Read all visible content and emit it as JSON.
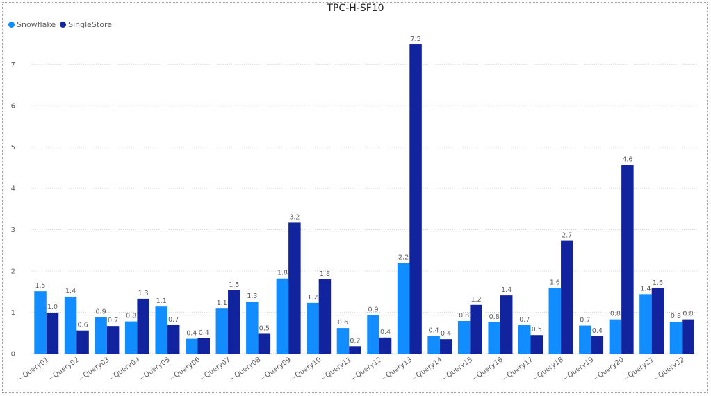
{
  "chart_data": {
    "type": "bar",
    "title": "TPC-H-SF10",
    "xlabel": "",
    "ylabel": "",
    "ylim": [
      0,
      7.8
    ],
    "yticks": [
      0,
      1,
      2,
      3,
      4,
      5,
      6,
      7
    ],
    "grid": true,
    "legend_position": "top-left",
    "categories": [
      "--Query01",
      "--Query02",
      "--Query03",
      "--Query04",
      "--Query05",
      "--Query06",
      "--Query07",
      "--Query08",
      "--Query09",
      "--Query10",
      "--Query11",
      "--Query12",
      "--Query13",
      "--Query14",
      "--Query15",
      "--Query16",
      "--Query17",
      "--Query18",
      "--Query19",
      "--Query20",
      "--Query21",
      "--Query22"
    ],
    "series": [
      {
        "name": "Snowflake",
        "color": "#118dff",
        "values": [
          1.51,
          1.38,
          0.88,
          0.78,
          1.14,
          0.36,
          1.09,
          1.26,
          1.82,
          1.23,
          0.62,
          0.93,
          2.19,
          0.43,
          0.79,
          0.76,
          0.69,
          1.59,
          0.68,
          0.83,
          1.44,
          0.77
        ],
        "labels": [
          "1.5",
          "1.4",
          "0.9",
          "0.8",
          "1.1",
          "0.4",
          "1.1",
          "1.3",
          "1.8",
          "1.2",
          "0.6",
          "0.9",
          "2.2",
          "0.4",
          "0.8",
          "0.8",
          "0.7",
          "1.6",
          "0.7",
          "0.8",
          "1.4",
          "0.8"
        ]
      },
      {
        "name": "SingleStore",
        "color": "#12239e",
        "values": [
          0.99,
          0.56,
          0.67,
          1.33,
          0.69,
          0.37,
          1.53,
          0.48,
          3.17,
          1.8,
          0.18,
          0.39,
          7.48,
          0.35,
          1.18,
          1.41,
          0.45,
          2.73,
          0.42,
          4.56,
          1.58,
          0.83
        ],
        "labels": [
          "1.0",
          "0.6",
          "0.7",
          "1.3",
          "0.7",
          "0.4",
          "1.5",
          "0.5",
          "3.2",
          "1.8",
          "0.2",
          "0.4",
          "7.5",
          "0.4",
          "1.2",
          "1.4",
          "0.5",
          "2.7",
          "0.4",
          "4.6",
          "1.6",
          "0.8"
        ]
      }
    ]
  }
}
